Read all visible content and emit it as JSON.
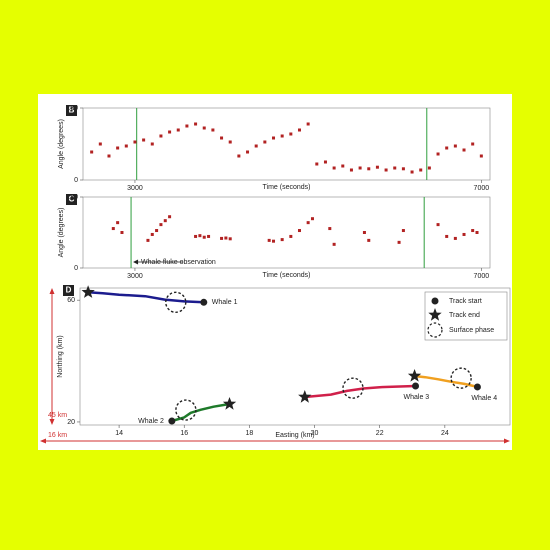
{
  "chart_data": [
    {
      "type": "scatter",
      "panel": "B",
      "xlabel": "Time (seconds)",
      "ylabel": "Angle (degrees)",
      "xlim": [
        2400,
        7100
      ],
      "ylim": [
        0,
        180
      ],
      "xticks": [
        3000,
        7000
      ],
      "yticks": [
        0,
        180
      ],
      "color": "#b22222",
      "markers_x": [
        3020,
        6370
      ],
      "marker_color": "#2e9e3e",
      "x": [
        2500,
        2600,
        2700,
        2800,
        2900,
        3000,
        3100,
        3200,
        3300,
        3400,
        3500,
        3600,
        3700,
        3800,
        3900,
        4000,
        4100,
        4200,
        4300,
        4400,
        4500,
        4600,
        4700,
        4800,
        4900,
        5000,
        5100,
        5200,
        5300,
        5400,
        5500,
        5600,
        5700,
        5800,
        5900,
        6000,
        6100,
        6200,
        6300,
        6400,
        6500,
        6600,
        6700,
        6800,
        6900,
        7000
      ],
      "y": [
        70,
        90,
        60,
        80,
        85,
        95,
        100,
        90,
        110,
        120,
        125,
        135,
        140,
        130,
        125,
        105,
        95,
        60,
        70,
        85,
        95,
        105,
        110,
        115,
        125,
        140,
        40,
        45,
        30,
        35,
        25,
        30,
        28,
        32,
        25,
        30,
        28,
        20,
        25,
        30,
        65,
        80,
        85,
        75,
        90,
        60
      ]
    },
    {
      "type": "scatter",
      "panel": "C",
      "xlabel": "Time (seconds)",
      "ylabel": "Angle (degrees)",
      "xlim": [
        2400,
        7100
      ],
      "ylim": [
        0,
        180
      ],
      "xticks": [
        3000,
        7000
      ],
      "yticks": [
        0,
        180
      ],
      "color": "#b22222",
      "markers_x": [
        2955,
        6340
      ],
      "marker_color": "#2e9e3e",
      "annotation": "Whale fluke observation",
      "x": [
        2750,
        2800,
        2850,
        3150,
        3200,
        3250,
        3300,
        3350,
        3400,
        3700,
        3750,
        3800,
        3850,
        4000,
        4050,
        4100,
        4550,
        4600,
        4700,
        4800,
        4900,
        5000,
        5050,
        5250,
        5300,
        5650,
        5700,
        6050,
        6100,
        6500,
        6600,
        6700,
        6800,
        6900,
        6950
      ],
      "y": [
        100,
        115,
        90,
        70,
        85,
        95,
        110,
        120,
        130,
        80,
        82,
        78,
        80,
        75,
        76,
        74,
        70,
        68,
        72,
        80,
        95,
        115,
        125,
        100,
        60,
        90,
        70,
        65,
        95,
        110,
        80,
        75,
        85,
        95,
        90
      ]
    },
    {
      "type": "line",
      "panel": "D",
      "xlabel": "Easting (km)",
      "ylabel": "Northing (km)",
      "xlim": [
        12.8,
        26
      ],
      "ylim": [
        19,
        64
      ],
      "xticks": [
        14,
        16,
        18,
        20,
        22,
        24
      ],
      "yticks": [
        20,
        60
      ],
      "series": [
        {
          "name": "Whale 1",
          "color": "#1c1c8e",
          "x": [
            16.6,
            16.0,
            15.4,
            14.8,
            14.0,
            13.5,
            13.05
          ],
          "y": [
            59.3,
            59.6,
            60.2,
            61.3,
            61.8,
            62.3,
            62.6
          ]
        },
        {
          "name": "Whale 2",
          "color": "#1e7a2a",
          "x": [
            15.62,
            16.0,
            16.2,
            16.5,
            16.9,
            17.39
          ],
          "y": [
            20.3,
            21.5,
            23.0,
            24.0,
            25.0,
            25.9
          ]
        },
        {
          "name": "Whale 3",
          "color": "#d0204a",
          "x": [
            23.1,
            22.5,
            22.0,
            21.5,
            21.0,
            20.5,
            20.0,
            19.7
          ],
          "y": [
            31.8,
            31.6,
            31.4,
            31.0,
            30.2,
            29.0,
            28.5,
            28.2
          ]
        },
        {
          "name": "Whale 4",
          "color": "#f0a020",
          "x": [
            25.0,
            24.6,
            24.2,
            23.8,
            23.4,
            23.07
          ],
          "y": [
            31.5,
            32.5,
            33.2,
            34.0,
            34.7,
            35.1
          ]
        }
      ],
      "surface": {
        "x": [
          15.74,
          16.05,
          21.18,
          24.5
        ],
        "y": [
          59.3,
          23.9,
          31.1,
          34.4
        ]
      },
      "legend": {
        "start": "Track start",
        "end": "Track end",
        "surface": "Surface phase"
      },
      "scale_labels": {
        "vertical": "45 km",
        "horizontal": "16 km"
      }
    }
  ]
}
